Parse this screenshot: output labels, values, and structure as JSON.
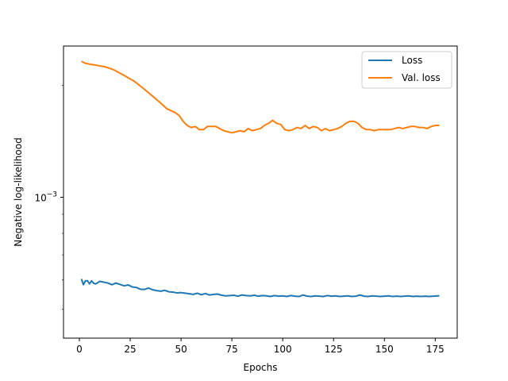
{
  "chart_data": {
    "type": "line",
    "xlabel": "Epochs",
    "ylabel": "Negative log-likelihood",
    "xlim": [
      -7.8,
      185.8
    ],
    "x_ticks": [
      0,
      25,
      50,
      75,
      100,
      125,
      150,
      175
    ],
    "y_scale": "log",
    "ylim": [
      0.000418,
      0.00255
    ],
    "y_tick_value": 0.001,
    "y_tick_label": {
      "base": "10",
      "exp": "−3"
    },
    "grid": false,
    "legend_position": "top-right",
    "series": [
      {
        "name": "Loss",
        "color": "#1f77b4",
        "points": [
          [
            1,
            0.000603
          ],
          [
            2,
            0.000582
          ],
          [
            3,
            0.000596
          ],
          [
            4,
            0.000596
          ],
          [
            5,
            0.000585
          ],
          [
            6,
            0.000596
          ],
          [
            7,
            0.000587
          ],
          [
            8,
            0.000585
          ],
          [
            9,
            0.000589
          ],
          [
            10,
            0.000594
          ],
          [
            12,
            0.000591
          ],
          [
            14,
            0.000588
          ],
          [
            16,
            0.000582
          ],
          [
            18,
            0.000588
          ],
          [
            20,
            0.000583
          ],
          [
            22,
            0.000578
          ],
          [
            24,
            0.000581
          ],
          [
            26,
            0.000574
          ],
          [
            28,
            0.000572
          ],
          [
            30,
            0.000566
          ],
          [
            32,
            0.000565
          ],
          [
            34,
            0.00057
          ],
          [
            36,
            0.000564
          ],
          [
            38,
            0.000561
          ],
          [
            40,
            0.000559
          ],
          [
            42,
            0.000562
          ],
          [
            44,
            0.000557
          ],
          [
            46,
            0.000556
          ],
          [
            48,
            0.000553
          ],
          [
            50,
            0.000554
          ],
          [
            52,
            0.000552
          ],
          [
            54,
            0.00055
          ],
          [
            56,
            0.000548
          ],
          [
            58,
            0.000552
          ],
          [
            60,
            0.000547
          ],
          [
            62,
            0.000551
          ],
          [
            64,
            0.000546
          ],
          [
            66,
            0.000548
          ],
          [
            68,
            0.000549
          ],
          [
            70,
            0.000545
          ],
          [
            72,
            0.000543
          ],
          [
            74,
            0.000544
          ],
          [
            76,
            0.000545
          ],
          [
            78,
            0.000542
          ],
          [
            80,
            0.000546
          ],
          [
            82,
            0.000544
          ],
          [
            84,
            0.000543
          ],
          [
            86,
            0.000545
          ],
          [
            88,
            0.000542
          ],
          [
            90,
            0.000544
          ],
          [
            92,
            0.000543
          ],
          [
            94,
            0.000541
          ],
          [
            96,
            0.000544
          ],
          [
            98,
            0.000542
          ],
          [
            100,
            0.000543
          ],
          [
            102,
            0.000541
          ],
          [
            104,
            0.000544
          ],
          [
            106,
            0.000542
          ],
          [
            108,
            0.000541
          ],
          [
            110,
            0.000546
          ],
          [
            112,
            0.000542
          ],
          [
            114,
            0.000541
          ],
          [
            116,
            0.000543
          ],
          [
            118,
            0.000542
          ],
          [
            120,
            0.000541
          ],
          [
            122,
            0.000544
          ],
          [
            124,
            0.000542
          ],
          [
            126,
            0.000543
          ],
          [
            128,
            0.000541
          ],
          [
            130,
            0.000542
          ],
          [
            132,
            0.000543
          ],
          [
            134,
            0.000541
          ],
          [
            136,
            0.000542
          ],
          [
            138,
            0.000546
          ],
          [
            140,
            0.000542
          ],
          [
            142,
            0.000541
          ],
          [
            144,
            0.000543
          ],
          [
            146,
            0.000542
          ],
          [
            148,
            0.000541
          ],
          [
            150,
            0.000542
          ],
          [
            152,
            0.000543
          ],
          [
            154,
            0.000541
          ],
          [
            156,
            0.000542
          ],
          [
            158,
            0.000541
          ],
          [
            160,
            0.000542
          ],
          [
            162,
            0.000543
          ],
          [
            164,
            0.000541
          ],
          [
            166,
            0.000542
          ],
          [
            168,
            0.000541
          ],
          [
            170,
            0.000542
          ],
          [
            172,
            0.000541
          ],
          [
            174,
            0.000542
          ],
          [
            176,
            0.000543
          ],
          [
            177,
            0.000543
          ]
        ]
      },
      {
        "name": "Val. loss",
        "color": "#ff7f0e",
        "points": [
          [
            1,
            0.00232
          ],
          [
            3,
            0.00229
          ],
          [
            5,
            0.00228
          ],
          [
            7,
            0.00227
          ],
          [
            9,
            0.00226
          ],
          [
            11,
            0.00225
          ],
          [
            13,
            0.00224
          ],
          [
            15,
            0.00222
          ],
          [
            17,
            0.0022
          ],
          [
            19,
            0.00217
          ],
          [
            21,
            0.00214
          ],
          [
            23,
            0.00211
          ],
          [
            25,
            0.00208
          ],
          [
            27,
            0.00205
          ],
          [
            29,
            0.00201
          ],
          [
            31,
            0.00197
          ],
          [
            33,
            0.00193
          ],
          [
            35,
            0.00189
          ],
          [
            37,
            0.00185
          ],
          [
            39,
            0.00181
          ],
          [
            41,
            0.00177
          ],
          [
            43,
            0.00173
          ],
          [
            45,
            0.00171
          ],
          [
            47,
            0.00169
          ],
          [
            49,
            0.00166
          ],
          [
            51,
            0.0016
          ],
          [
            53,
            0.00156
          ],
          [
            55,
            0.00154
          ],
          [
            57,
            0.00155
          ],
          [
            59,
            0.00152
          ],
          [
            61,
            0.00152
          ],
          [
            63,
            0.00155
          ],
          [
            65,
            0.00155
          ],
          [
            67,
            0.00155
          ],
          [
            69,
            0.00153
          ],
          [
            71,
            0.00151
          ],
          [
            73,
            0.0015
          ],
          [
            75,
            0.00149
          ],
          [
            77,
            0.0015
          ],
          [
            79,
            0.00151
          ],
          [
            81,
            0.0015
          ],
          [
            83,
            0.00153
          ],
          [
            85,
            0.00151
          ],
          [
            87,
            0.00152
          ],
          [
            89,
            0.00153
          ],
          [
            91,
            0.00156
          ],
          [
            93,
            0.00158
          ],
          [
            95,
            0.00161
          ],
          [
            97,
            0.00158
          ],
          [
            99,
            0.00157
          ],
          [
            101,
            0.00152
          ],
          [
            103,
            0.00151
          ],
          [
            105,
            0.00152
          ],
          [
            107,
            0.00154
          ],
          [
            109,
            0.00153
          ],
          [
            111,
            0.00156
          ],
          [
            113,
            0.00153
          ],
          [
            115,
            0.00155
          ],
          [
            117,
            0.00154
          ],
          [
            119,
            0.00151
          ],
          [
            121,
            0.00153
          ],
          [
            123,
            0.00151
          ],
          [
            125,
            0.00152
          ],
          [
            127,
            0.00153
          ],
          [
            129,
            0.00155
          ],
          [
            131,
            0.00158
          ],
          [
            133,
            0.0016
          ],
          [
            135,
            0.0016
          ],
          [
            137,
            0.00158
          ],
          [
            139,
            0.00154
          ],
          [
            141,
            0.00152
          ],
          [
            143,
            0.00152
          ],
          [
            145,
            0.00151
          ],
          [
            147,
            0.00152
          ],
          [
            149,
            0.00152
          ],
          [
            151,
            0.00152
          ],
          [
            153,
            0.00152
          ],
          [
            155,
            0.00153
          ],
          [
            157,
            0.00154
          ],
          [
            159,
            0.00153
          ],
          [
            161,
            0.00154
          ],
          [
            163,
            0.00155
          ],
          [
            165,
            0.00155
          ],
          [
            167,
            0.00154
          ],
          [
            169,
            0.00154
          ],
          [
            171,
            0.00153
          ],
          [
            173,
            0.00155
          ],
          [
            175,
            0.00156
          ],
          [
            177,
            0.00156
          ]
        ]
      }
    ]
  }
}
